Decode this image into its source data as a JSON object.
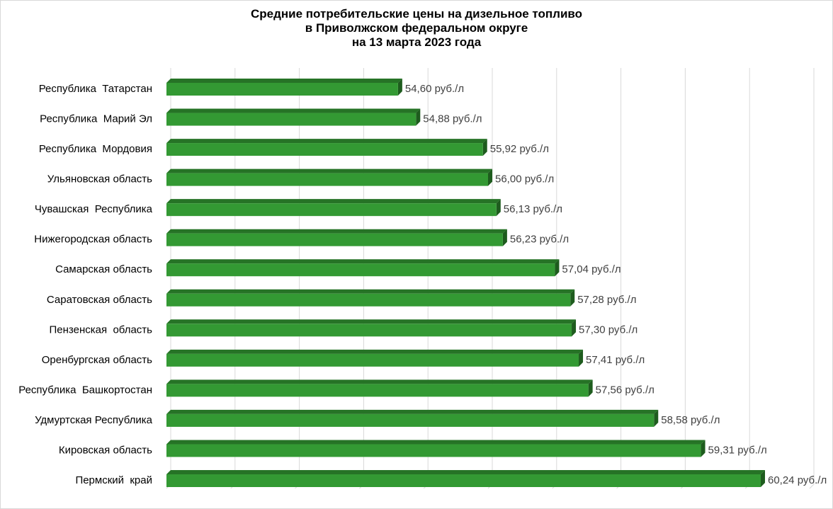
{
  "chart_data": {
    "type": "bar",
    "orientation": "horizontal",
    "title_lines": [
      "Средние потребительские цены на дизельное топливо",
      "в Приволжском федеральном округе",
      "на 13 марта 2023 года"
    ],
    "categories": [
      "Республика  Татарстан",
      "Республика  Марий Эл",
      "Республика  Мордовия",
      "Ульяновская область",
      "Чувашская  Республика",
      "Нижегородская область",
      "Самарская область",
      "Саратовская область",
      "Пензенская  область",
      "Оренбургская область",
      "Республика  Башкортостан",
      "Удмуртская Республика",
      "Кировская область",
      "Пермский  край"
    ],
    "values": [
      54.6,
      54.88,
      55.92,
      56.0,
      56.13,
      56.23,
      57.04,
      57.28,
      57.3,
      57.41,
      57.56,
      58.58,
      59.31,
      60.24
    ],
    "value_labels": [
      "54,60 руб./л",
      "54,88 руб./л",
      "55,92 руб./л",
      "56,00 руб./л",
      "56,13 руб./л",
      "56,23 руб./л",
      "57,04 руб./л",
      "57,28 руб./л",
      "57,30 руб./л",
      "57,41 руб./л",
      "57,56 руб./л",
      "58,58 руб./л",
      "59,31 руб./л",
      "60,24 руб./л"
    ],
    "xlim": [
      51.0,
      61.0
    ],
    "grid": true,
    "colors": {
      "bar_front": "#339933",
      "bar_top": "#267326",
      "bar_side": "#1e5c1e",
      "grid": "#d9d9d9"
    }
  }
}
